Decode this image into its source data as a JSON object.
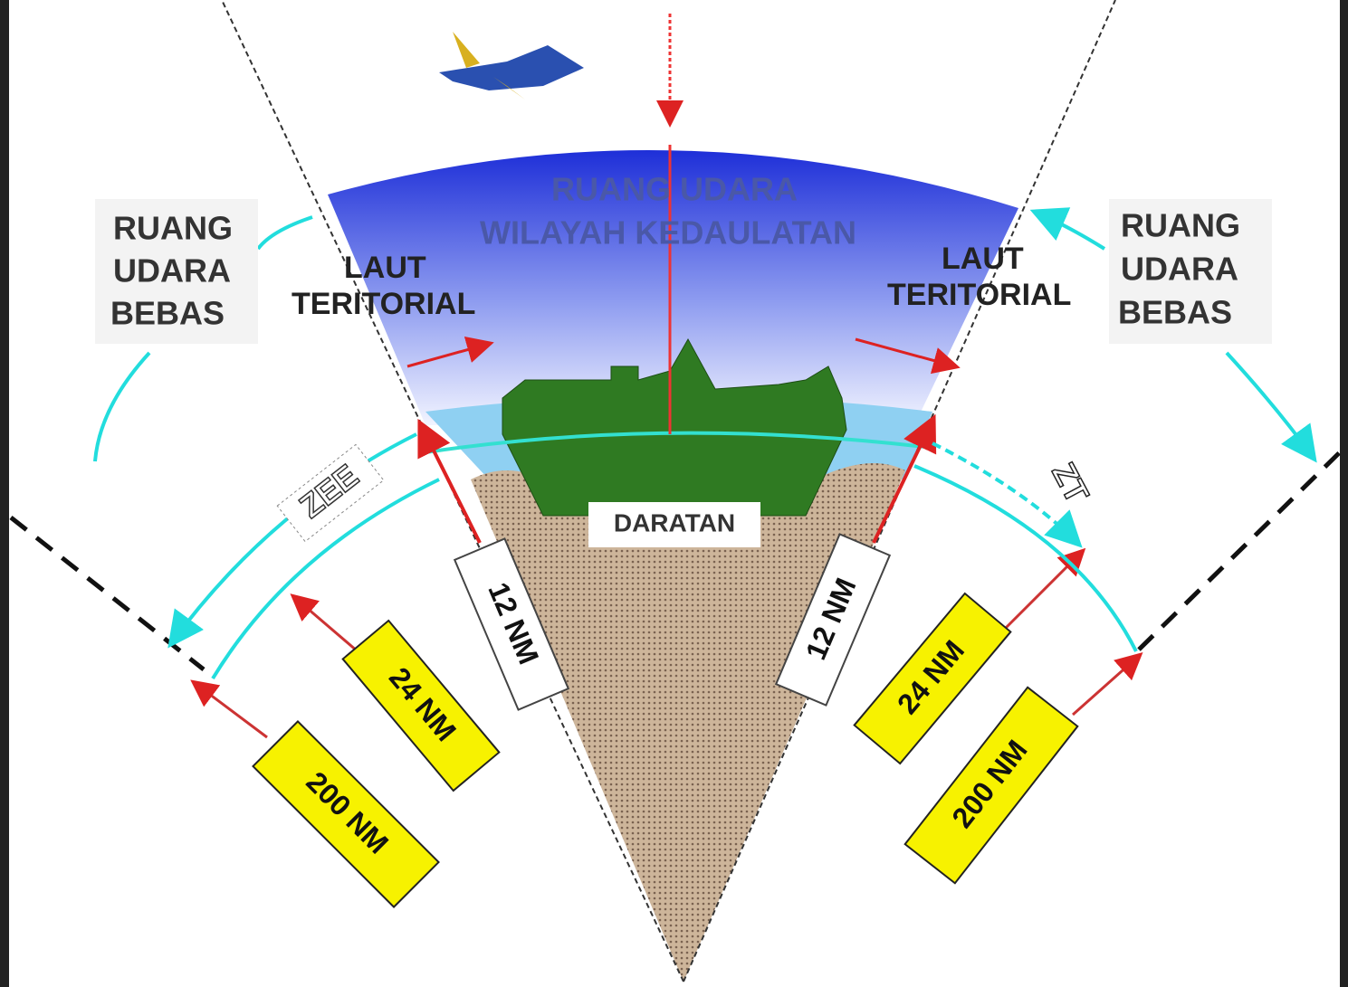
{
  "airspace": {
    "lines": [
      "RUANG UDARA",
      "WILAYAH KEDAULATAN"
    ]
  },
  "free_airspace_left": {
    "lines": [
      "RUANG",
      "UDARA",
      "BEBAS"
    ]
  },
  "free_airspace_right": {
    "lines": [
      "RUANG",
      "UDARA",
      "BEBAS"
    ]
  },
  "territorial_sea_left": {
    "lines": [
      "LAUT",
      "TERITORIAL"
    ]
  },
  "territorial_sea_right": {
    "lines": [
      "LAUT",
      "TERITORIAL"
    ]
  },
  "zee": "ZEE",
  "zt": "ZT",
  "land": "DARATAN",
  "distances": {
    "left_12": "12 NM",
    "right_12": "12 NM",
    "left_24": "24 NM",
    "right_24": "24 NM",
    "left_200": "200 NM",
    "right_200": "200 NM"
  }
}
